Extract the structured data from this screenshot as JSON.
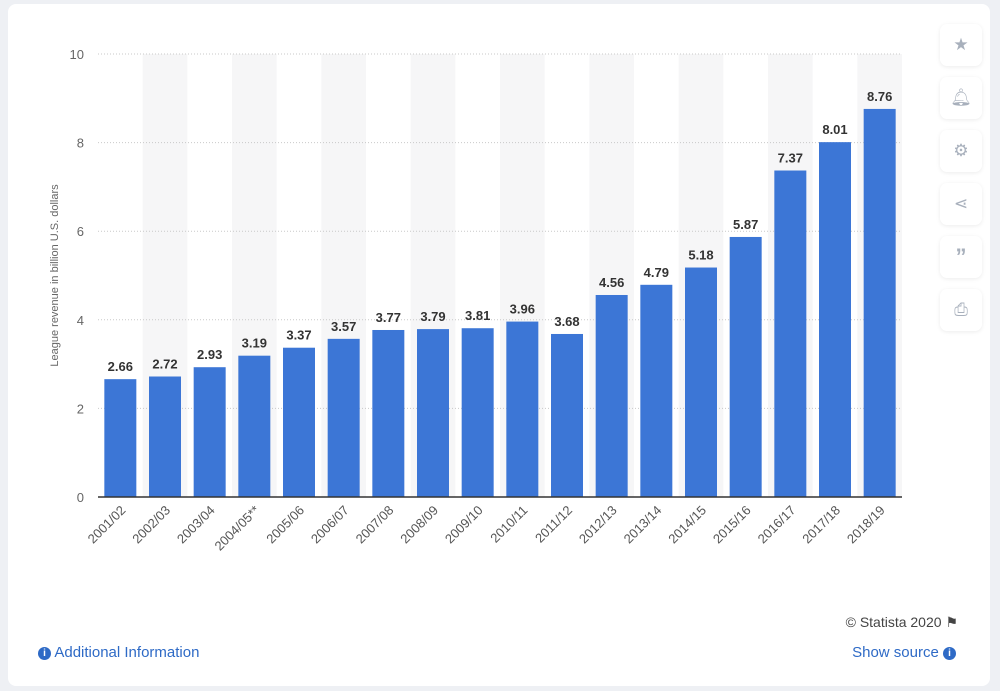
{
  "chart_data": {
    "type": "bar",
    "categories": [
      "2001/02",
      "2002/03",
      "2003/04",
      "2004/05**",
      "2005/06",
      "2006/07",
      "2007/08",
      "2008/09",
      "2009/10",
      "2010/11",
      "2011/12",
      "2012/13",
      "2013/14",
      "2014/15",
      "2015/16",
      "2016/17",
      "2017/18",
      "2018/19"
    ],
    "values": [
      2.66,
      2.72,
      2.93,
      3.19,
      3.37,
      3.57,
      3.77,
      3.79,
      3.81,
      3.96,
      3.68,
      4.56,
      4.79,
      5.18,
      5.87,
      7.37,
      8.01,
      8.76
    ],
    "labels": [
      "2.66",
      "2.72",
      "2.93",
      "3.19",
      "3.37",
      "3.57",
      "3.77",
      "3.79",
      "3.81",
      "3.96",
      "3.68",
      "4.56",
      "4.79",
      "5.18",
      "5.87",
      "7.37",
      "8.01",
      "8.76"
    ],
    "ylabel": "League revenue in billion U.S. dollars",
    "xlabel": "",
    "ylim": [
      0,
      10
    ],
    "yticks": [
      "0",
      "2",
      "4",
      "6",
      "8",
      "10"
    ],
    "grid": true,
    "bar_color": "#3c76d6"
  },
  "toolbar": {
    "icons": [
      "star-icon",
      "bell-icon",
      "gear-icon",
      "share-icon",
      "quote-icon",
      "print-icon"
    ]
  },
  "footer": {
    "copyright": "© Statista 2020",
    "additional_info": "Additional Information",
    "show_source": "Show source"
  }
}
